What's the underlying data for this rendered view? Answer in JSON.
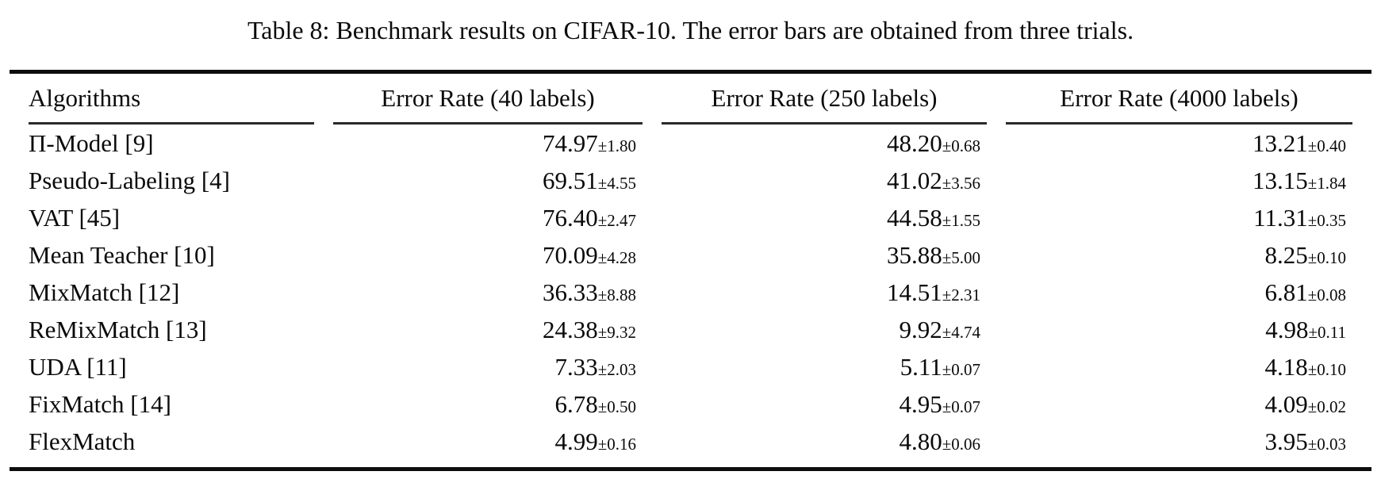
{
  "title": "Table 8: Benchmark results on CIFAR-10. The error bars are obtained from three trials.",
  "columns": {
    "algorithms": "Algorithms",
    "c40": "Error Rate (40 labels)",
    "c250": "Error Rate (250 labels)",
    "c4000": "Error Rate (4000 labels)"
  },
  "rows": [
    {
      "name": "Π-Model [9]",
      "v40": "74.97",
      "e40": "±1.80",
      "v250": "48.20",
      "e250": "±0.68",
      "v4000": "13.21",
      "e4000": "±0.40"
    },
    {
      "name": "Pseudo-Labeling [4]",
      "v40": "69.51",
      "e40": "±4.55",
      "v250": "41.02",
      "e250": "±3.56",
      "v4000": "13.15",
      "e4000": "±1.84"
    },
    {
      "name": "VAT [45]",
      "v40": "76.40",
      "e40": "±2.47",
      "v250": "44.58",
      "e250": "±1.55",
      "v4000": "11.31",
      "e4000": "±0.35"
    },
    {
      "name": "Mean Teacher [10]",
      "v40": "70.09",
      "e40": "±4.28",
      "v250": "35.88",
      "e250": "±5.00",
      "v4000": "8.25",
      "e4000": "±0.10"
    },
    {
      "name": "MixMatch [12]",
      "v40": "36.33",
      "e40": "±8.88",
      "v250": "14.51",
      "e250": "±2.31",
      "v4000": "6.81",
      "e4000": "±0.08"
    },
    {
      "name": "ReMixMatch [13]",
      "v40": "24.38",
      "e40": "±9.32",
      "v250": "9.92",
      "e250": "±4.74",
      "v4000": "4.98",
      "e4000": "±0.11"
    },
    {
      "name": "UDA [11]",
      "v40": "7.33",
      "e40": "±2.03",
      "v250": "5.11",
      "e250": "±0.07",
      "v4000": "4.18",
      "e4000": "±0.10"
    },
    {
      "name": "FixMatch [14]",
      "v40": "6.78",
      "e40": "±0.50",
      "v250": "4.95",
      "e250": "±0.07",
      "v4000": "4.09",
      "e4000": "±0.02"
    },
    {
      "name": "FlexMatch",
      "v40": "4.99",
      "e40": "±0.16",
      "v250": "4.80",
      "e250": "±0.06",
      "v4000": "3.95",
      "e4000": "±0.03"
    }
  ]
}
